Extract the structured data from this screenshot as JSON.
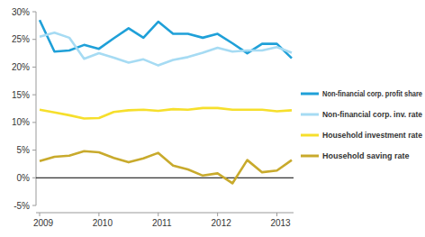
{
  "chart_data": {
    "type": "line",
    "categories": [
      "2009",
      null,
      null,
      null,
      "2010",
      null,
      null,
      null,
      "2011",
      null,
      null,
      null,
      "2012",
      null,
      null,
      null,
      "2013",
      null
    ],
    "series": [
      {
        "name": "Non-financial corp. profit share",
        "color": "#1fa0d8",
        "values": [
          28.5,
          22.8,
          23,
          24,
          23.3,
          25.2,
          27,
          25.3,
          28.2,
          26,
          26,
          25.3,
          26,
          24.3,
          22.5,
          24.2,
          24.2,
          21.6
        ]
      },
      {
        "name": "Non-financial corp. inv. rate",
        "color": "#a6dbf3",
        "values": [
          25.5,
          26.2,
          25.3,
          21.5,
          22.5,
          21.7,
          20.8,
          21.4,
          20.3,
          21.3,
          21.8,
          22.6,
          23.5,
          22.8,
          23,
          23,
          23.6,
          22.6
        ]
      },
      {
        "name": "Household investment rate",
        "color": "#f6df2c",
        "values": [
          12.3,
          11.8,
          11.3,
          10.7,
          10.8,
          11.9,
          12.2,
          12.3,
          12.1,
          12.4,
          12.3,
          12.6,
          12.6,
          12.3,
          12.3,
          12.3,
          12.0,
          12.2
        ]
      },
      {
        "name": "Household saving rate",
        "color": "#c8aa2c",
        "values": [
          3.0,
          3.8,
          4.0,
          4.8,
          4.6,
          3.6,
          2.8,
          3.5,
          4.5,
          2.2,
          1.5,
          0.4,
          0.8,
          -1.0,
          3.2,
          1.0,
          1.3,
          3.2
        ]
      }
    ],
    "ylim": [
      -5,
      30
    ],
    "yticks": [
      {
        "value": -5,
        "label": "-5%"
      },
      {
        "value": 0,
        "label": "0%"
      },
      {
        "value": 5,
        "label": "5%"
      },
      {
        "value": 10,
        "label": "10%"
      },
      {
        "value": 15,
        "label": "15%"
      },
      {
        "value": 20,
        "label": "20%"
      },
      {
        "value": 25,
        "label": "25%"
      },
      {
        "value": 30,
        "label": "30%"
      }
    ],
    "grid": false,
    "legend": "right"
  }
}
